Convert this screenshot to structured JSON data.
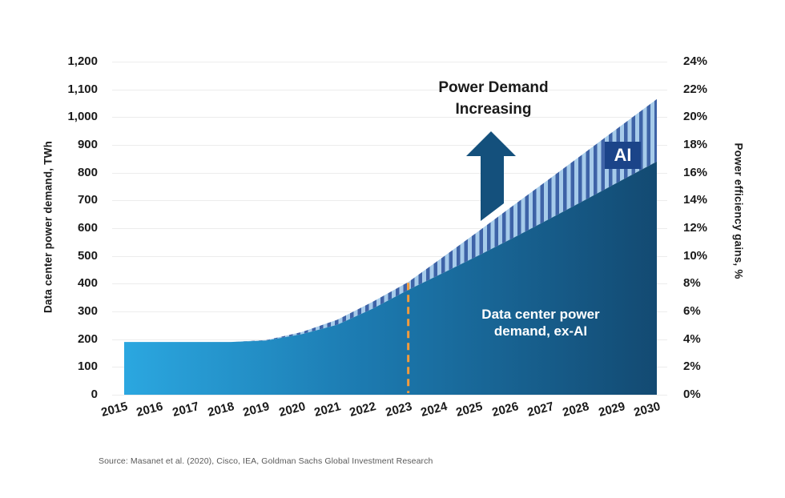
{
  "annotation": {
    "line1": "Power Demand",
    "line2": "Increasing"
  },
  "area_label": {
    "line1": "Data center power",
    "line2": "demand, ex-AI"
  },
  "ai_badge": {
    "label": "AI"
  },
  "source": "Source: Masanet et al. (2020), Cisco, IEA, Goldman Sachs Global Investment Research",
  "axes": {
    "left": {
      "title": "Data center power demand, TWh",
      "tick_labels": [
        "1,200",
        "1,100",
        "1,000",
        "900",
        "800",
        "700",
        "600",
        "500",
        "400",
        "300",
        "200",
        "100",
        "0"
      ]
    },
    "right": {
      "title": "Power efficiency gains, %",
      "tick_labels": [
        "24%",
        "22%",
        "20%",
        "18%",
        "16%",
        "14%",
        "12%",
        "10%",
        "8%",
        "6%",
        "4%",
        "2%",
        "0%"
      ]
    },
    "x": {
      "tick_labels": [
        "2015",
        "2016",
        "2017",
        "2018",
        "2019",
        "2020",
        "2021",
        "2022",
        "2023",
        "2024",
        "2025",
        "2026",
        "2027",
        "2028",
        "2029",
        "2030"
      ]
    }
  },
  "chart_data": {
    "type": "area",
    "stacked": true,
    "x": [
      2015,
      2016,
      2017,
      2018,
      2019,
      2020,
      2021,
      2022,
      2023,
      2024,
      2025,
      2026,
      2027,
      2028,
      2029,
      2030
    ],
    "series": [
      {
        "name": "Data center power demand, ex-AI",
        "values": [
          190,
          190,
          190,
          190,
          195,
          218,
          252,
          310,
          378,
          440,
          503,
          568,
          635,
          703,
          772,
          840
        ]
      },
      {
        "name": "AI",
        "values": [
          0,
          0,
          0,
          0,
          2,
          8,
          18,
          25,
          28,
          58,
          88,
          118,
          145,
          172,
          198,
          225
        ]
      }
    ],
    "totals": [
      190,
      190,
      190,
      190,
      197,
      226,
      270,
      335,
      406,
      498,
      591,
      686,
      780,
      875,
      970,
      1065
    ],
    "y_left": {
      "label": "Data center power demand, TWh",
      "range": [
        0,
        1200
      ],
      "tick_step": 100
    },
    "y_right": {
      "label": "Power efficiency gains, %",
      "range": [
        0,
        24
      ],
      "tick_step": 2
    },
    "reference_line": {
      "x": 2023,
      "style": "dashed"
    },
    "grid": "horizontal",
    "legend": "none",
    "title": ""
  },
  "colors": {
    "area_gradient_start": "#2BA7E0",
    "area_gradient_mid": "#1C7AB0",
    "area_gradient_end": "#134A72",
    "ai_stripe_light": "#A6CBEA",
    "ai_stripe_dark": "#3E63A7",
    "ai_badge_bg": "#1B4489",
    "arrow": "#14507C",
    "reference_line": "#F59C3C",
    "gridline": "#ECECEC",
    "text": "#1A1A1A",
    "source_text": "#595959"
  }
}
